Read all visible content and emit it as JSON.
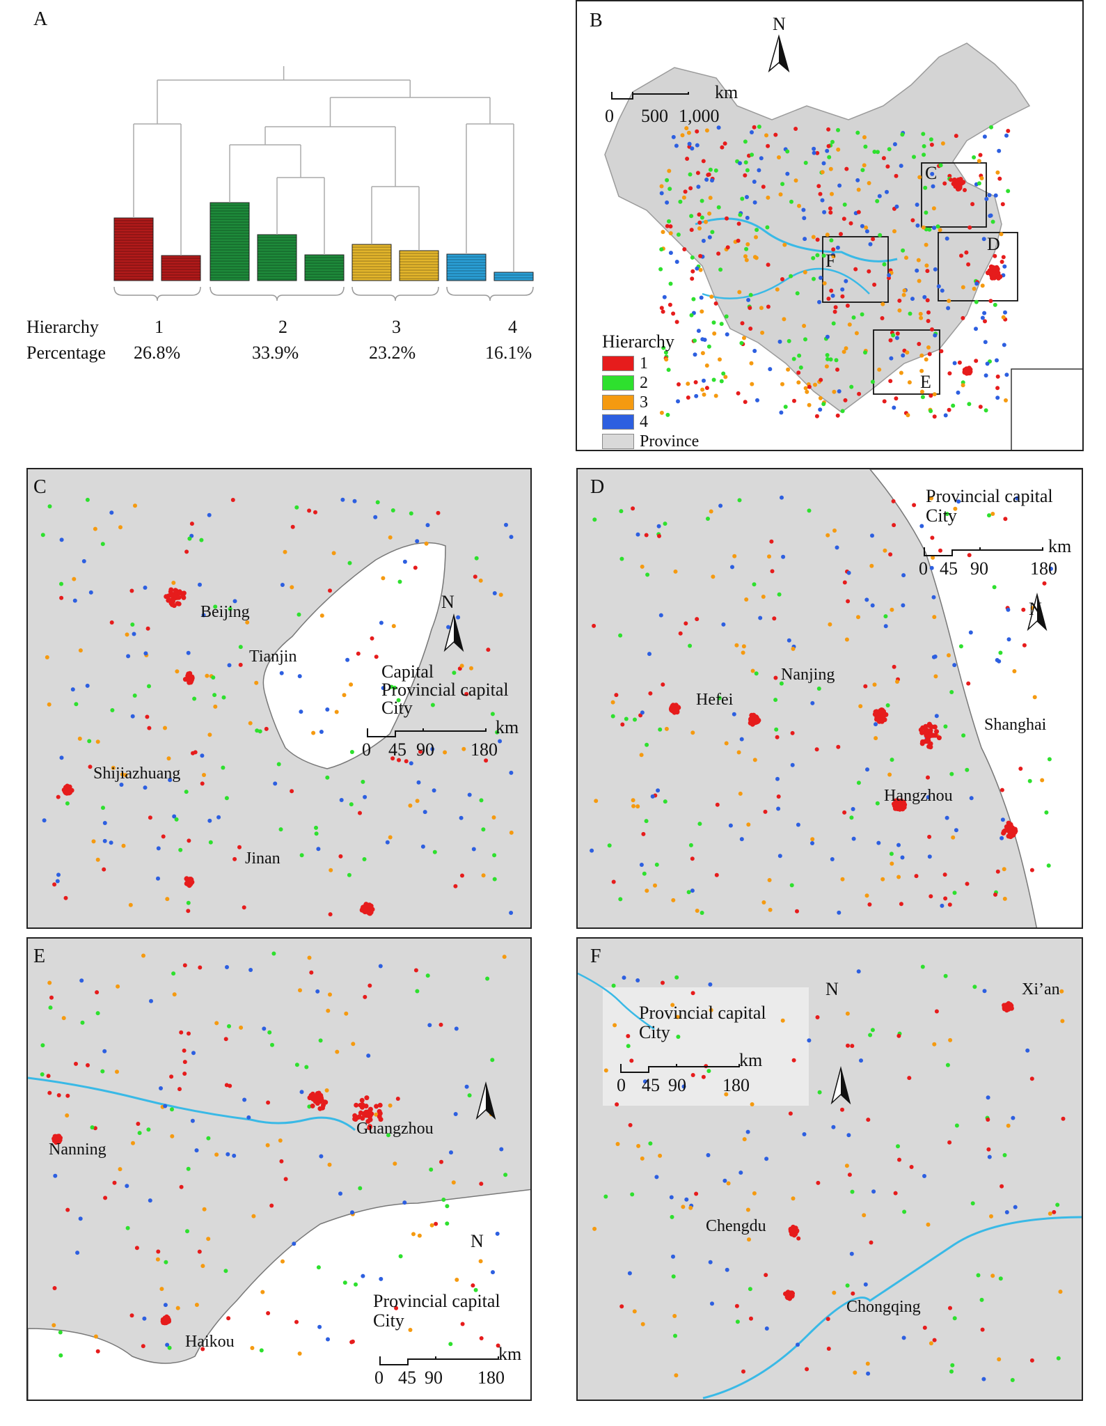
{
  "panel_a": {
    "label": "A",
    "hierarchy_label": "Hierarchy",
    "percentage_label": "Percentage",
    "groups": [
      {
        "hierarchy": "1",
        "percentage": "26.8%",
        "color": "#b11a1a"
      },
      {
        "hierarchy": "2",
        "percentage": "33.9%",
        "color": "#1e8a3a"
      },
      {
        "hierarchy": "3",
        "percentage": "23.2%",
        "color": "#e3b52b"
      },
      {
        "hierarchy": "4",
        "percentage": "16.1%",
        "color": "#2a9fd6"
      }
    ]
  },
  "panel_b": {
    "label": "B",
    "north": "N",
    "scale_unit": "km",
    "scale_ticks": [
      "0",
      "500",
      "1,000"
    ],
    "box_labels": [
      "C",
      "D",
      "E",
      "F"
    ],
    "legend": {
      "title": "Hierarchy",
      "items": [
        {
          "label": "1",
          "color": "#e61c1c"
        },
        {
          "label": "2",
          "color": "#2ee02e"
        },
        {
          "label": "3",
          "color": "#f59a10"
        },
        {
          "label": "4",
          "color": "#2d5fe0"
        },
        {
          "label": "Province",
          "color": "#d9d9d9"
        }
      ]
    }
  },
  "panel_c": {
    "label": "C",
    "north": "N",
    "legend": [
      "Capital",
      "Provincial capital",
      "City"
    ],
    "scale_unit": "km",
    "scale_ticks": [
      "0",
      "45",
      "90",
      "180"
    ],
    "cities": [
      "Beijing",
      "Tianjin",
      "Shijiazhuang",
      "Jinan"
    ]
  },
  "panel_d": {
    "label": "D",
    "north": "N",
    "legend": [
      "Provincial capital",
      "City"
    ],
    "scale_unit": "km",
    "scale_ticks": [
      "0",
      "45",
      "90",
      "180"
    ],
    "cities": [
      "Nanjing",
      "Hefei",
      "Shanghai",
      "Hangzhou"
    ]
  },
  "panel_e": {
    "label": "E",
    "north": "N",
    "legend": [
      "Provincial capital",
      "City"
    ],
    "scale_unit": "km",
    "scale_ticks": [
      "0",
      "45",
      "90",
      "180"
    ],
    "cities": [
      "Guangzhou",
      "Nanning",
      "Haikou"
    ]
  },
  "panel_f": {
    "label": "F",
    "north": "N",
    "legend": [
      "Provincial capital",
      "City"
    ],
    "scale_unit": "km",
    "scale_ticks": [
      "0",
      "45",
      "90",
      "180"
    ],
    "cities": [
      "Xi’an",
      "Chengdu",
      "Chongqing"
    ]
  }
}
